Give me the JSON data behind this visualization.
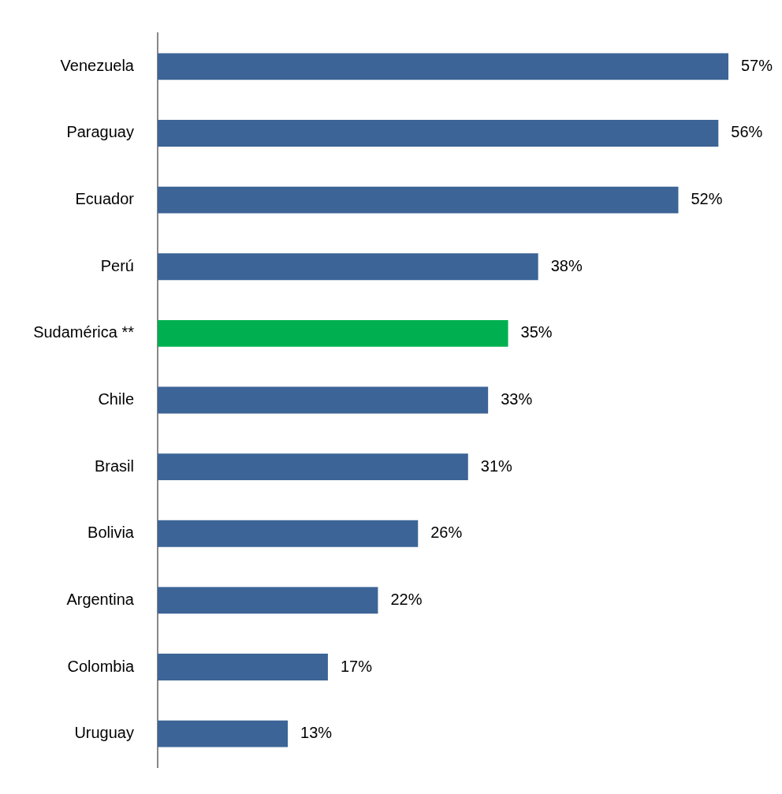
{
  "chart_data": {
    "type": "bar",
    "orientation": "horizontal",
    "categories": [
      "Venezuela",
      "Paraguay",
      "Ecuador",
      "Perú",
      "Sudamérica **",
      "Chile",
      "Brasil",
      "Bolivia",
      "Argentina",
      "Colombia",
      "Uruguay"
    ],
    "values": [
      57,
      56,
      52,
      38,
      35,
      33,
      31,
      26,
      22,
      17,
      13
    ],
    "colors": [
      "#3c6496",
      "#3c6496",
      "#3c6496",
      "#3c6496",
      "#00b050",
      "#3c6496",
      "#3c6496",
      "#3c6496",
      "#3c6496",
      "#3c6496",
      "#3c6496"
    ],
    "value_labels": [
      "57%",
      "56%",
      "52%",
      "38%",
      "35%",
      "33%",
      "31%",
      "26%",
      "22%",
      "17%",
      "13%"
    ],
    "xlim": [
      0,
      57
    ],
    "tick_labels": "y"
  }
}
